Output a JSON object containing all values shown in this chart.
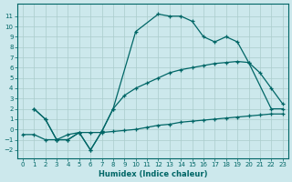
{
  "xlabel": "Humidex (Indice chaleur)",
  "bg_color": "#cce8ec",
  "grid_color": "#aacccc",
  "line_color": "#006666",
  "line1_x": [
    1,
    2,
    3,
    4,
    5,
    6,
    7,
    8,
    10,
    12,
    13,
    14,
    15,
    16,
    17,
    18,
    19,
    20,
    22,
    23
  ],
  "line1_y": [
    2,
    1,
    -1,
    -1,
    -0.3,
    -2,
    -0.2,
    2.0,
    9.5,
    11.2,
    11.0,
    11.0,
    10.5,
    9.0,
    8.5,
    9.0,
    8.5,
    6.5,
    2.0,
    2.0
  ],
  "line2_x": [
    1,
    2,
    3,
    4,
    5,
    6,
    7,
    8,
    9,
    10,
    11,
    12,
    13,
    14,
    15,
    16,
    17,
    18,
    19,
    20,
    21,
    22,
    23
  ],
  "line2_y": [
    2,
    1,
    -1,
    -1,
    -0.3,
    -2,
    -0.2,
    2.0,
    3.3,
    4.0,
    4.5,
    5.0,
    5.5,
    5.8,
    6.0,
    6.2,
    6.4,
    6.5,
    6.6,
    6.5,
    5.5,
    4.0,
    2.5
  ],
  "line3_x": [
    0,
    1,
    2,
    3,
    4,
    5,
    6,
    7,
    8,
    9,
    10,
    11,
    12,
    13,
    14,
    15,
    16,
    17,
    18,
    19,
    20,
    21,
    22,
    23
  ],
  "line3_y": [
    -0.5,
    -0.5,
    -1.0,
    -1.0,
    -0.5,
    -0.3,
    -0.3,
    -0.3,
    -0.2,
    -0.1,
    0.0,
    0.2,
    0.4,
    0.5,
    0.7,
    0.8,
    0.9,
    1.0,
    1.1,
    1.2,
    1.3,
    1.4,
    1.5,
    1.5
  ],
  "xlim": [
    -0.5,
    23.5
  ],
  "ylim": [
    -2.8,
    12.2
  ],
  "yticks": [
    -2,
    -1,
    0,
    1,
    2,
    3,
    4,
    5,
    6,
    7,
    8,
    9,
    10,
    11
  ],
  "xticks": [
    0,
    1,
    2,
    3,
    4,
    5,
    6,
    7,
    8,
    9,
    10,
    11,
    12,
    13,
    14,
    15,
    16,
    17,
    18,
    19,
    20,
    21,
    22,
    23
  ]
}
